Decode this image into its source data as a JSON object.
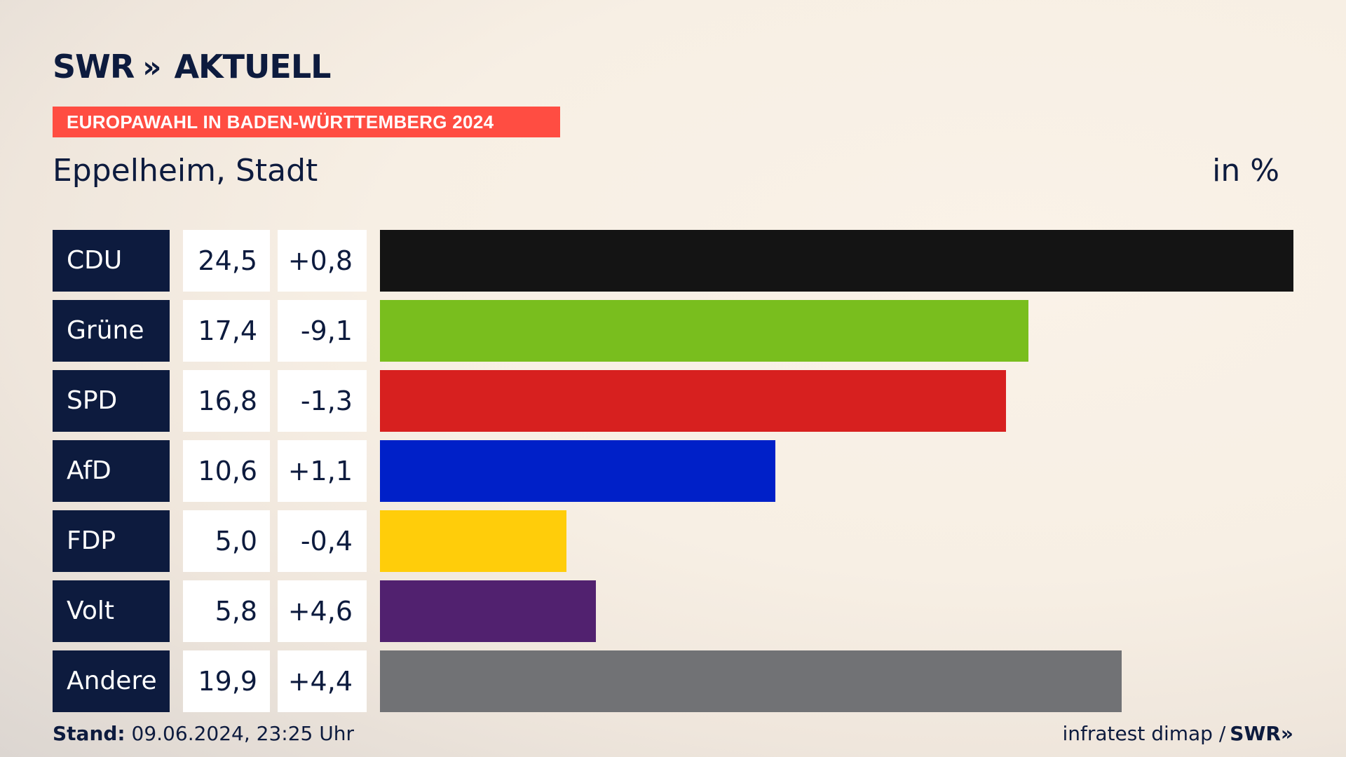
{
  "header": {
    "brand": "SWR",
    "brand_chevrons": "»",
    "brand_suffix": "AKTUELL",
    "banner": "EUROPAWAHL IN BADEN-WÜRTTEMBERG 2024",
    "region": "Eppelheim, Stadt",
    "unit": "in %"
  },
  "chart_data": {
    "type": "bar",
    "title": "Eppelheim, Stadt",
    "ylabel": "in %",
    "categories": [
      "CDU",
      "Grüne",
      "SPD",
      "AfD",
      "FDP",
      "Volt",
      "Andere"
    ],
    "values": [
      24.5,
      17.4,
      16.8,
      10.6,
      5.0,
      5.8,
      19.9
    ],
    "value_labels": [
      "24,5",
      "17,4",
      "16,8",
      "10,6",
      "5,0",
      "5,8",
      "19,9"
    ],
    "diff_labels": [
      "+0,8",
      "-9,1",
      "-1,3",
      "+1,1",
      "-0,4",
      "+4,6",
      "+4,4"
    ],
    "colors": [
      "#141414",
      "#79be1e",
      "#d7201f",
      "#0020c8",
      "#ffcd0a",
      "#51216f",
      "#717275"
    ]
  },
  "footer": {
    "stand_label": "Stand:",
    "stand_value": "09.06.2024, 23:25 Uhr",
    "source": "infratest dimap /",
    "source_brand": "SWR»"
  }
}
